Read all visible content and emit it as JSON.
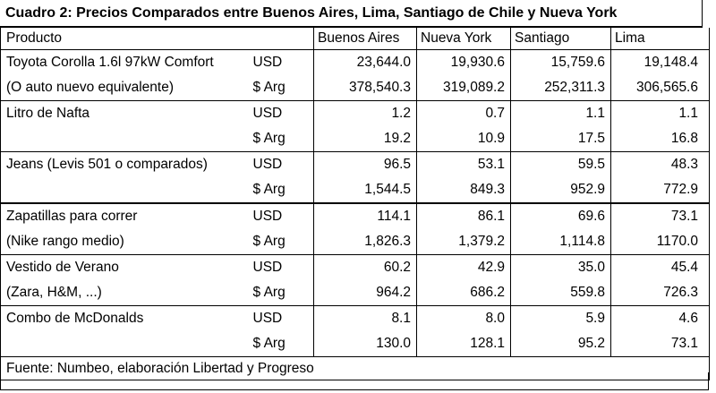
{
  "title": "Cuadro 2: Precios Comparados entre Buenos Aires, Lima, Santiago de Chile y Nueva York",
  "headers": {
    "producto": "Producto",
    "buenos_aires": "Buenos Aires",
    "nueva_york": "Nueva York",
    "santiago": "Santiago",
    "lima": "Lima"
  },
  "rows": [
    {
      "label": "Toyota Corolla 1.6l 97kW Comfort",
      "currency": "USD",
      "ba": "23,644.0",
      "ny": "19,930.6",
      "sc": "15,759.6",
      "li": "19,148.4"
    },
    {
      "label": "(O auto nuevo equivalente)",
      "currency": "$ Arg",
      "ba": "378,540.3",
      "ny": "319,089.2",
      "sc": "252,311.3",
      "li": "306,565.6"
    },
    {
      "label": "Litro de Nafta",
      "currency": "USD",
      "ba": "1.2",
      "ny": "0.7",
      "sc": "1.1",
      "li": "1.1"
    },
    {
      "label": "",
      "currency": "$ Arg",
      "ba": "19.2",
      "ny": "10.9",
      "sc": "17.5",
      "li": "16.8"
    },
    {
      "label": "Jeans (Levis 501 o comparados)",
      "currency": "USD",
      "ba": "96.5",
      "ny": "53.1",
      "sc": "59.5",
      "li": "48.3"
    },
    {
      "label": "",
      "currency": "$ Arg",
      "ba": "1,544.5",
      "ny": "849.3",
      "sc": "952.9",
      "li": "772.9"
    },
    {
      "label": "Zapatillas para correr",
      "currency": "USD",
      "ba": "114.1",
      "ny": "86.1",
      "sc": "69.6",
      "li": "73.1"
    },
    {
      "label": " (Nike rango medio)",
      "currency": "$ Arg",
      "ba": "1,826.3",
      "ny": "1,379.2",
      "sc": "1,114.8",
      "li": "1170.0"
    },
    {
      "label": "Vestido de Verano",
      "currency": "USD",
      "ba": "60.2",
      "ny": "42.9",
      "sc": "35.0",
      "li": "45.4"
    },
    {
      "label": "(Zara, H&M, ...)",
      "currency": "$ Arg",
      "ba": "964.2",
      "ny": "686.2",
      "sc": "559.8",
      "li": "726.3"
    },
    {
      "label": "Combo de McDonalds",
      "currency": "USD",
      "ba": "8.1",
      "ny": "8.0",
      "sc": "5.9",
      "li": "4.6"
    },
    {
      "label": "",
      "currency": "$ Arg",
      "ba": "130.0",
      "ny": "128.1",
      "sc": "95.2",
      "li": "73.1"
    }
  ],
  "footer": "Fuente: Numbeo, elaboración Libertad y Progreso"
}
